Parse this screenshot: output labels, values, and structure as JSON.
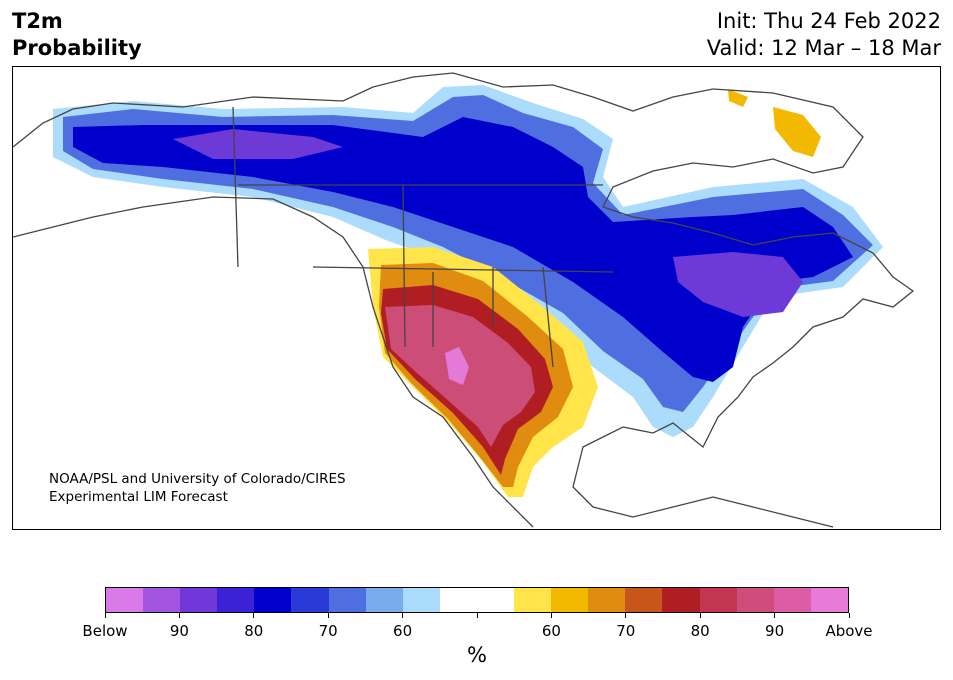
{
  "title": {
    "left": "T2m\nProbability",
    "right": "Init: Thu 24 Feb 2022\nValid: 12 Mar – 18 Mar"
  },
  "credit": "NOAA/PSL and University of Colorado/CIRES\nExperimental LIM Forecast",
  "colorbar": {
    "unit": "%",
    "colors": [
      "#d97ae8",
      "#a155e0",
      "#7137d8",
      "#3b22d6",
      "#0000cd",
      "#2a3ad8",
      "#4f6fe0",
      "#79aced",
      "#acdcfb",
      "#ffffff",
      "#ffffff",
      "#ffe44a",
      "#f3b800",
      "#e08c10",
      "#c8561a",
      "#b01e24",
      "#c43553",
      "#d04c7a",
      "#dc5ca5",
      "#e87ad8"
    ],
    "labels": [
      "Below",
      "90",
      "80",
      "70",
      "60",
      "",
      "60",
      "70",
      "80",
      "90",
      "Above"
    ]
  },
  "map_colors": {
    "land_outline": "#444444",
    "blue_strong": "#0000cd",
    "blue_purple": "#6d3ad8",
    "warm_core": "#cc4d77",
    "warm_peak": "#e37ad6"
  }
}
